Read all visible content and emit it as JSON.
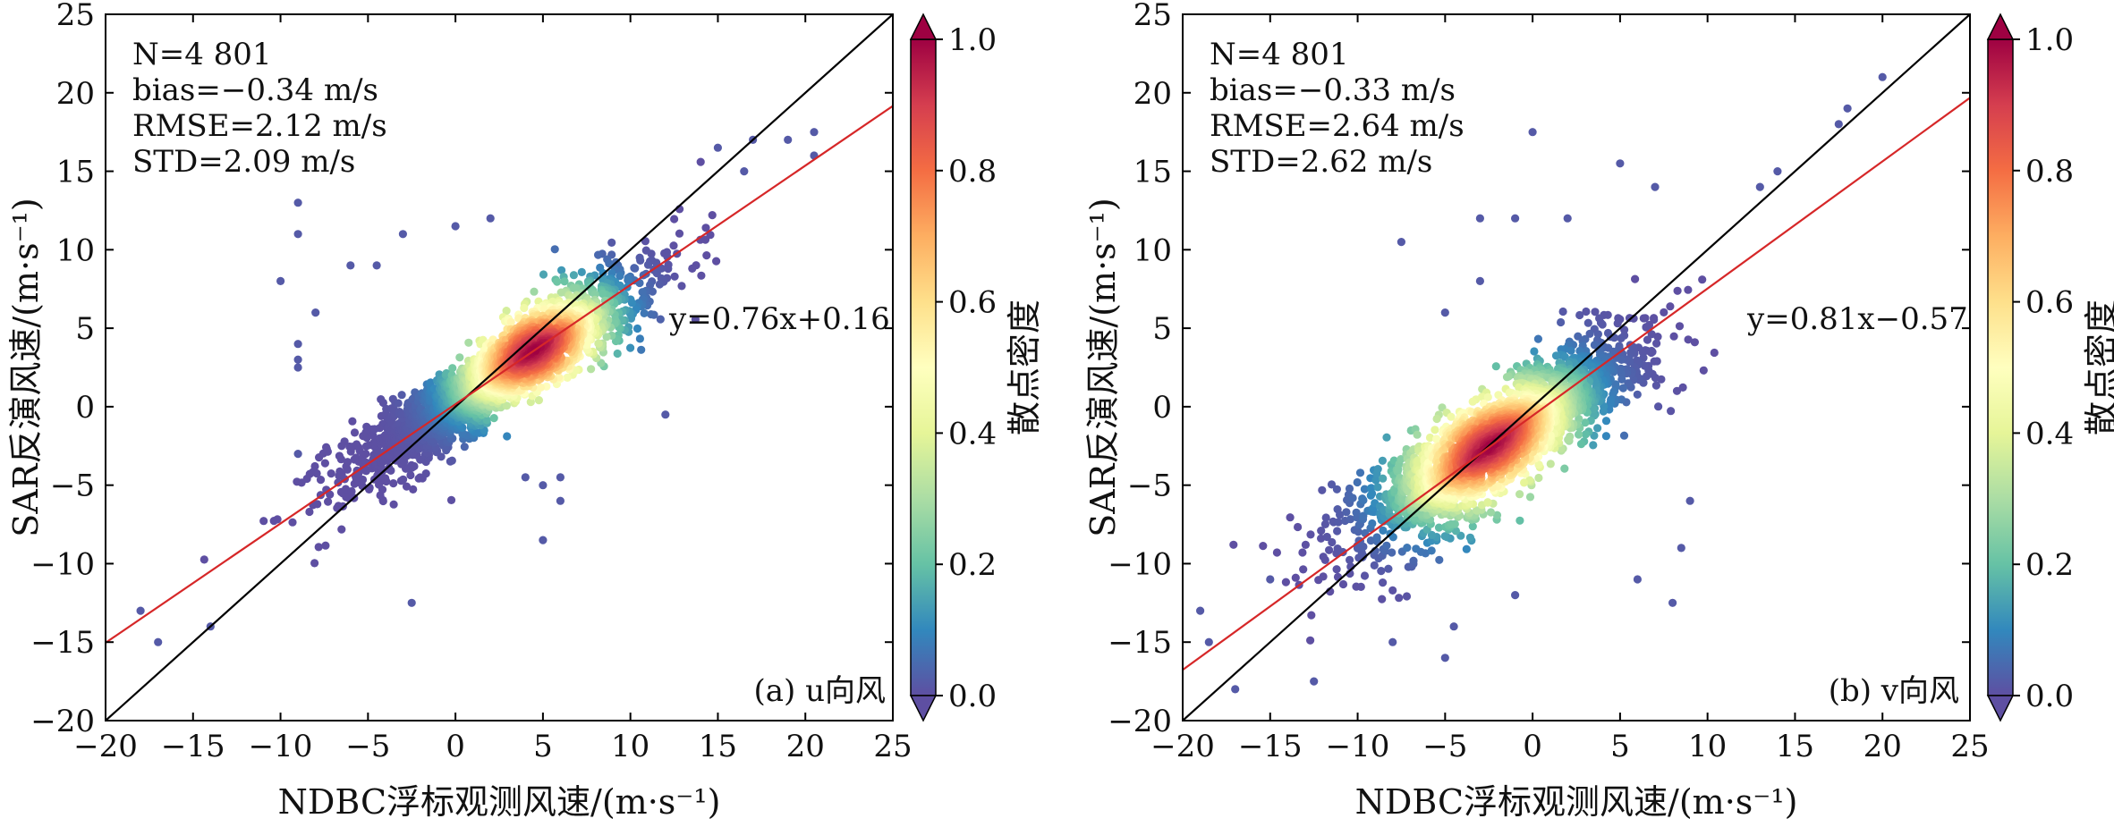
{
  "chart_data": [
    {
      "type": "scatter",
      "panel_label": "(a) u向风",
      "xlabel": "NDBC浮标观测风速/(m·s⁻¹)",
      "ylabel": "SAR反演风速/(m·s⁻¹)",
      "xlim": [
        -20,
        25
      ],
      "ylim": [
        -20,
        25
      ],
      "xticks": [
        -20,
        -15,
        -10,
        -5,
        0,
        5,
        10,
        15,
        20,
        25
      ],
      "yticks": [
        -20,
        -15,
        -10,
        -5,
        0,
        5,
        10,
        15,
        20,
        25
      ],
      "stats": [
        "N=4 801",
        "bias=−0.34 m/s",
        "RMSE=2.12 m/s",
        "STD=2.09 m/s"
      ],
      "fit_label": "y=0.76x+0.16",
      "fit": {
        "slope": 0.76,
        "intercept": 0.16
      },
      "reference_line": {
        "slope": 1,
        "intercept": 0
      },
      "density_center": [
        4.5,
        3.6
      ],
      "n_points": 4801,
      "outliers": [
        [
          -9,
          13
        ],
        [
          -9,
          11
        ],
        [
          -9,
          4
        ],
        [
          -9,
          3
        ],
        [
          -9,
          2.5
        ],
        [
          -9,
          -3
        ],
        [
          -10,
          8
        ],
        [
          -8,
          6
        ],
        [
          -4.5,
          9
        ],
        [
          -3,
          11
        ],
        [
          -2.5,
          -12.5
        ],
        [
          4,
          -4.5
        ],
        [
          5,
          -5
        ],
        [
          5,
          -8.5
        ],
        [
          6,
          -4.5
        ],
        [
          6,
          -6
        ],
        [
          12,
          -0.5
        ],
        [
          -14,
          -14
        ],
        [
          -17,
          -15
        ],
        [
          -18,
          -13
        ],
        [
          20.5,
          16
        ],
        [
          20.5,
          17.5
        ],
        [
          19,
          17
        ],
        [
          17,
          17
        ],
        [
          16.5,
          15
        ],
        [
          15,
          16.5
        ],
        [
          2,
          12
        ],
        [
          0,
          11.5
        ],
        [
          -6,
          9
        ]
      ]
    },
    {
      "type": "scatter",
      "panel_label": "(b) v向风",
      "xlabel": "NDBC浮标观测风速/(m·s⁻¹)",
      "ylabel": "SAR反演风速/(m·s⁻¹)",
      "xlim": [
        -20,
        25
      ],
      "ylim": [
        -20,
        25
      ],
      "xticks": [
        -20,
        -15,
        -10,
        -5,
        0,
        5,
        10,
        15,
        20,
        25
      ],
      "yticks": [
        -20,
        -15,
        -10,
        -5,
        0,
        5,
        10,
        15,
        20,
        25
      ],
      "stats": [
        "N=4 801",
        "bias=−0.33 m/s",
        "RMSE=2.64 m/s",
        "STD=2.62 m/s"
      ],
      "fit_label": "y=0.81x−0.57",
      "fit": {
        "slope": 0.81,
        "intercept": -0.57
      },
      "reference_line": {
        "slope": 1,
        "intercept": 0
      },
      "density_center": [
        -2.5,
        -2.5
      ],
      "n_points": 4801,
      "outliers": [
        [
          0,
          17.5
        ],
        [
          -12.5,
          -17.5
        ],
        [
          -19,
          -13
        ],
        [
          -18.5,
          -15
        ],
        [
          -17,
          -18
        ],
        [
          -15,
          -11
        ],
        [
          -3,
          12
        ],
        [
          -1,
          12
        ],
        [
          -7.5,
          10.5
        ],
        [
          -5,
          6
        ],
        [
          -3,
          8
        ],
        [
          5,
          15.5
        ],
        [
          8,
          -12.5
        ],
        [
          8.5,
          -9
        ],
        [
          6,
          -11
        ],
        [
          -4.5,
          -14
        ],
        [
          -1,
          -12
        ],
        [
          -8,
          -15
        ],
        [
          20,
          21
        ],
        [
          18,
          19
        ],
        [
          17.5,
          18
        ],
        [
          14,
          15
        ],
        [
          13,
          14
        ],
        [
          -5,
          -16
        ],
        [
          2,
          12
        ],
        [
          7,
          14
        ],
        [
          9,
          -6
        ]
      ]
    }
  ],
  "colorbar": {
    "label": "散点密度",
    "ticks": [
      0.0,
      0.2,
      0.4,
      0.6,
      0.8,
      1.0
    ],
    "tick_labels": [
      "0.0",
      "0.2",
      "0.4",
      "0.6",
      "0.8",
      "1.0"
    ],
    "colormap": [
      "#5e4fa2",
      "#3288bd",
      "#66c2a5",
      "#abdda4",
      "#e6f598",
      "#ffffbf",
      "#fee08b",
      "#fdae61",
      "#f46d43",
      "#d53e4f",
      "#9e0142"
    ]
  },
  "colors": {
    "fit_line": "#d62728",
    "reference_line": "#000000",
    "axes": "#000000"
  }
}
